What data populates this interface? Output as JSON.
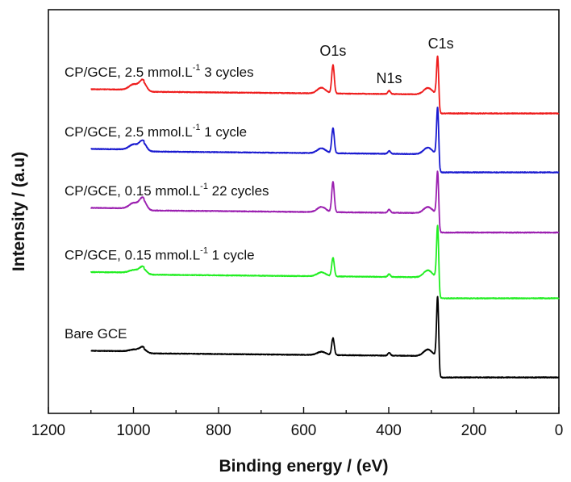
{
  "chart_data": {
    "type": "line",
    "title": "",
    "xlabel": "Binding energy / (eV)",
    "ylabel": "Intensity / (a.u)",
    "xlim": [
      1200,
      0
    ],
    "x_reversed": true,
    "xticks": [
      1200,
      1000,
      800,
      600,
      400,
      200,
      0
    ],
    "xtick_labels": [
      "1200",
      "1000",
      "800",
      "600",
      "400",
      "200",
      "0"
    ],
    "y_ticks_shown": false,
    "ylim": [
      0,
      100
    ],
    "peak_labels": [
      {
        "text": "O1s",
        "x": 531
      },
      {
        "text": "N1s",
        "x": 399
      },
      {
        "text": "C1s",
        "x": 285
      }
    ],
    "series": [
      {
        "name": "Bare GCE",
        "label_main": "Bare GCE",
        "label_sup": "",
        "label_tail": "",
        "color": "#000000",
        "baseline_left": 15.0,
        "baseline_right": 8.9,
        "peaks": [
          {
            "x": 1000,
            "h": 0.4,
            "w": 10
          },
          {
            "x": 978,
            "h": 1.1,
            "w": 8
          },
          {
            "x": 558,
            "h": 0.8,
            "w": 10
          },
          {
            "x": 531,
            "h": 4.2,
            "w": 3
          },
          {
            "x": 399,
            "h": 0.7,
            "w": 3
          },
          {
            "x": 308,
            "h": 1.6,
            "w": 10
          },
          {
            "x": 285,
            "h": 17.2,
            "w": 2.5
          }
        ]
      },
      {
        "name": "CP/GCE, 0.15 mmol.L-1 1 cycle",
        "label_main": "CP/GCE, 0.15 mmol.L",
        "label_sup": "-1",
        "label_tail": " 1 cycle",
        "color": "#22ee22",
        "baseline_left": 34.5,
        "baseline_right": 28.5,
        "peaks": [
          {
            "x": 1000,
            "h": 0.6,
            "w": 10
          },
          {
            "x": 978,
            "h": 1.5,
            "w": 8
          },
          {
            "x": 558,
            "h": 1.0,
            "w": 10
          },
          {
            "x": 531,
            "h": 4.6,
            "w": 3
          },
          {
            "x": 399,
            "h": 0.7,
            "w": 3
          },
          {
            "x": 308,
            "h": 1.7,
            "w": 10
          },
          {
            "x": 285,
            "h": 15.3,
            "w": 2.5
          }
        ]
      },
      {
        "name": "CP/GCE, 0.15 mmol.L-1 22 cycles",
        "label_main": "CP/GCE, 0.15 mmol.L",
        "label_sup": "-1",
        "label_tail": " 22 cycles",
        "color": "#9b20b0",
        "baseline_left": 50.4,
        "baseline_right": 44.8,
        "peaks": [
          {
            "x": 1000,
            "h": 1.3,
            "w": 10
          },
          {
            "x": 978,
            "h": 2.6,
            "w": 8
          },
          {
            "x": 558,
            "h": 1.3,
            "w": 10
          },
          {
            "x": 531,
            "h": 7.5,
            "w": 3
          },
          {
            "x": 399,
            "h": 0.8,
            "w": 3
          },
          {
            "x": 308,
            "h": 1.5,
            "w": 10
          },
          {
            "x": 285,
            "h": 12.6,
            "w": 2.5
          }
        ]
      },
      {
        "name": "CP/GCE, 2.5 mmol.L-1 1 cycle",
        "label_main": "CP/GCE, 2.5 mmol.L",
        "label_sup": "-1",
        "label_tail": " 1 cycle",
        "color": "#1a1ad0",
        "baseline_left": 65.0,
        "baseline_right": 59.7,
        "peaks": [
          {
            "x": 1000,
            "h": 1.2,
            "w": 10
          },
          {
            "x": 978,
            "h": 2.2,
            "w": 8
          },
          {
            "x": 558,
            "h": 1.2,
            "w": 10
          },
          {
            "x": 531,
            "h": 6.2,
            "w": 3
          },
          {
            "x": 399,
            "h": 0.7,
            "w": 3
          },
          {
            "x": 308,
            "h": 1.6,
            "w": 10
          },
          {
            "x": 285,
            "h": 13.7,
            "w": 2.5
          }
        ]
      },
      {
        "name": "CP/GCE, 2.5 mmol.L-1 3 cycles",
        "label_main": "CP/GCE, 2.5 mmol.L",
        "label_sup": "-1",
        "label_tail": " 3 cycles",
        "color": "#ee1c1c",
        "baseline_left": 79.8,
        "baseline_right": 74.3,
        "peaks": [
          {
            "x": 1000,
            "h": 1.3,
            "w": 10
          },
          {
            "x": 978,
            "h": 2.4,
            "w": 8
          },
          {
            "x": 558,
            "h": 1.4,
            "w": 10
          },
          {
            "x": 531,
            "h": 7.0,
            "w": 3
          },
          {
            "x": 399,
            "h": 0.8,
            "w": 3
          },
          {
            "x": 308,
            "h": 1.6,
            "w": 10
          },
          {
            "x": 285,
            "h": 11.7,
            "w": 2.5
          }
        ]
      }
    ]
  }
}
